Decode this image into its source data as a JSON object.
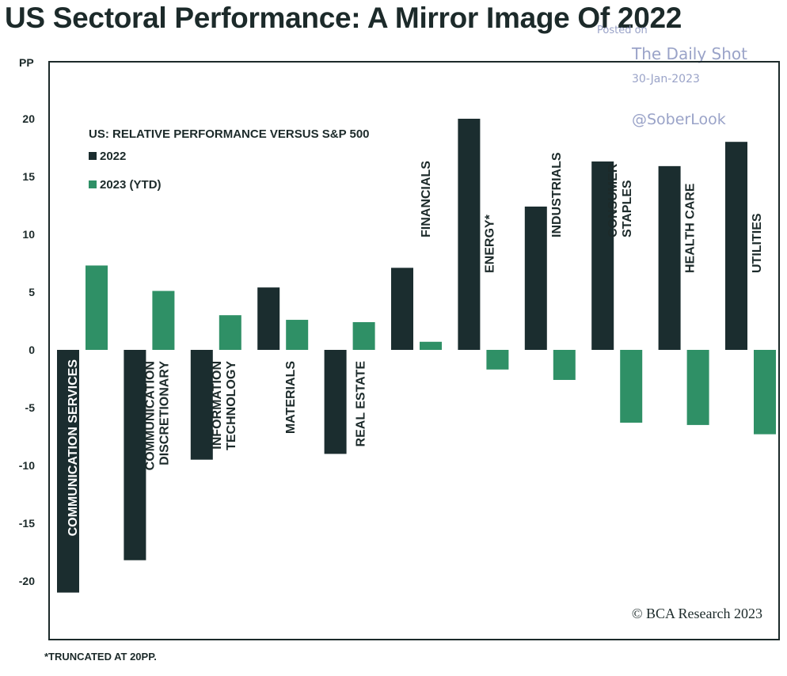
{
  "title": "US Sectoral Performance: A Mirror Image Of 2022",
  "watermark": {
    "posted": "Posted on",
    "source": "The Daily Shot",
    "date": "30-Jan-2023",
    "handle": "@SoberLook"
  },
  "footnote": "*TRUNCATED AT 20PP.",
  "credit": "© BCA Research 2023",
  "colors": {
    "s2022": "#1b2d2f",
    "s2023": "#2f9066",
    "axis": "#1c2a2a"
  },
  "chart_data": {
    "type": "bar",
    "title": "US: RELATIVE PERFORMANCE VERSUS S&P 500",
    "ylabel": "PP",
    "xlabel": "",
    "ylim": [
      -25,
      25
    ],
    "yticks": [
      -20,
      -15,
      -10,
      -5,
      0,
      5,
      10,
      15,
      20
    ],
    "legend_position": "top-left",
    "categories": [
      [
        "COMMUNICATION SERVICES"
      ],
      [
        "COMMUNICATION",
        "DISCRETIONARY"
      ],
      [
        "INFORMATION",
        "TECHNOLOGY"
      ],
      [
        "MATERIALS"
      ],
      [
        "REAL ESTATE"
      ],
      [
        "FINANCIALS"
      ],
      [
        "ENERGY*"
      ],
      [
        "INDUSTRIALS"
      ],
      [
        "CONSUMER",
        "STAPLES"
      ],
      [
        "HEALTH CARE"
      ],
      [
        "UTILITIES"
      ]
    ],
    "series": [
      {
        "name": "2022",
        "values": [
          -21.0,
          -18.2,
          -9.5,
          5.4,
          -9.0,
          7.1,
          20.0,
          12.4,
          16.3,
          15.9,
          18.0
        ]
      },
      {
        "name": "2023 (YTD)",
        "values": [
          7.3,
          5.1,
          3.0,
          2.6,
          2.4,
          0.7,
          -1.7,
          -2.6,
          -6.3,
          -6.5,
          -7.3
        ]
      }
    ]
  }
}
